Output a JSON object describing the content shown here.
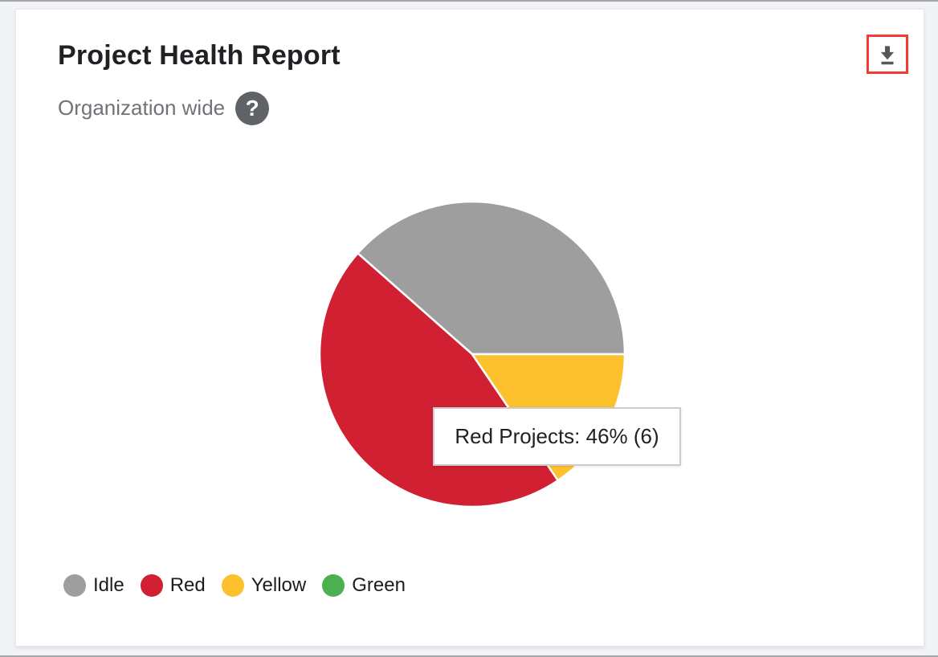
{
  "header": {
    "help_icon": "question-mark",
    "download_icon": "download-arrow"
  },
  "chart_data": {
    "type": "pie",
    "title": "Project Health Report",
    "subtitle": "Organization wide",
    "legend_position": "bottom",
    "start_angle_deg": 0,
    "direction": "counterclockwise",
    "slices": [
      {
        "label": "Idle",
        "color": "#9e9e9e",
        "percent": 38.5
      },
      {
        "label": "Red",
        "color": "#d02031",
        "percent": 46,
        "count": 6
      },
      {
        "label": "Yellow",
        "color": "#fdc12d",
        "percent": 15.5
      },
      {
        "label": "Green",
        "color": "#4caf50",
        "percent": 0
      }
    ],
    "tooltip": {
      "text": "Red Projects: 46% (6)"
    }
  },
  "colors": {
    "download_highlight": "#f23b31",
    "help_icon_bg": "#5f6368",
    "icon_gray": "#55575b",
    "slice_separator": "#ffffff"
  }
}
